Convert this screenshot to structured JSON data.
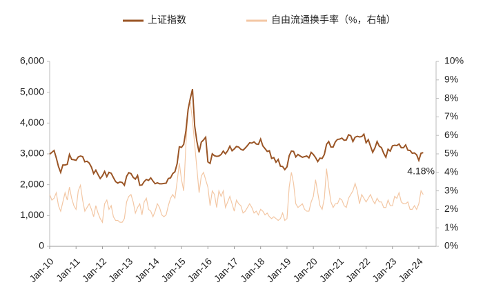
{
  "chart_data": {
    "type": "line",
    "categories": [
      "Jan-10",
      null,
      null,
      null,
      null,
      null,
      null,
      null,
      null,
      null,
      null,
      null,
      "Jan-11",
      null,
      null,
      null,
      null,
      null,
      null,
      null,
      null,
      null,
      null,
      null,
      "Jan-12",
      null,
      null,
      null,
      null,
      null,
      null,
      null,
      null,
      null,
      null,
      null,
      "Jan-13",
      null,
      null,
      null,
      null,
      null,
      null,
      null,
      null,
      null,
      null,
      null,
      "Jan-14",
      null,
      null,
      null,
      null,
      null,
      null,
      null,
      null,
      null,
      null,
      null,
      "Jan-15",
      null,
      null,
      null,
      null,
      null,
      null,
      null,
      null,
      null,
      null,
      null,
      "Jan-16",
      null,
      null,
      null,
      null,
      null,
      null,
      null,
      null,
      null,
      null,
      null,
      "Jan-17",
      null,
      null,
      null,
      null,
      null,
      null,
      null,
      null,
      null,
      null,
      null,
      "Jan-18",
      null,
      null,
      null,
      null,
      null,
      null,
      null,
      null,
      null,
      null,
      null,
      "Jan-19",
      null,
      null,
      null,
      null,
      null,
      null,
      null,
      null,
      null,
      null,
      null,
      "Jan-20",
      null,
      null,
      null,
      null,
      null,
      null,
      null,
      null,
      null,
      null,
      null,
      "Jan-21",
      null,
      null,
      null,
      null,
      null,
      null,
      null,
      null,
      null,
      null,
      null,
      "Jan-22",
      null,
      null,
      null,
      null,
      null,
      null,
      null,
      null,
      null,
      null,
      null,
      "Jan-23",
      null,
      null,
      null,
      null,
      null,
      null,
      null,
      null,
      null,
      null,
      null,
      "Jan-24",
      null,
      null
    ],
    "series": [
      {
        "name": "上证指数",
        "color": "#9a5526",
        "axis": "y",
        "values": [
          2990,
          3050,
          3110,
          2870,
          2590,
          2400,
          2640,
          2640,
          2660,
          2980,
          2820,
          2810,
          2790,
          2900,
          2930,
          2910,
          2740,
          2760,
          2700,
          2570,
          2360,
          2470,
          2330,
          2200,
          2290,
          2430,
          2260,
          2400,
          2370,
          2230,
          2100,
          2050,
          2090,
          2070,
          1980,
          2270,
          2390,
          2360,
          2240,
          2180,
          2300,
          1980,
          1990,
          2100,
          2170,
          2140,
          2220,
          2120,
          2030,
          2060,
          2030,
          2030,
          2040,
          2050,
          2200,
          2220,
          2360,
          2420,
          2680,
          3230,
          3210,
          3310,
          3750,
          4440,
          4800,
          5100,
          3900,
          3400,
          3050,
          3380,
          3450,
          3540,
          2740,
          2690,
          3000,
          2940,
          2920,
          2930,
          2980,
          3090,
          3000,
          3100,
          3250,
          3100,
          3160,
          3240,
          3220,
          3150,
          3120,
          3190,
          3270,
          3360,
          3350,
          3390,
          3320,
          3310,
          3480,
          3260,
          3170,
          3080,
          3100,
          2850,
          2880,
          2730,
          2820,
          2600,
          2590,
          2490,
          2580,
          2940,
          3090,
          3080,
          2900,
          2980,
          2930,
          2890,
          2910,
          2930,
          2870,
          3050,
          2980,
          2880,
          2750,
          2860,
          2850,
          2980,
          3310,
          3400,
          3220,
          3220,
          3390,
          3470,
          3480,
          3510,
          3440,
          3450,
          3620,
          3590,
          3400,
          3540,
          3570,
          3550,
          3560,
          3640,
          3360,
          3460,
          3250,
          3050,
          3190,
          3400,
          3250,
          3200,
          3020,
          2890,
          3150,
          3090,
          3260,
          3280,
          3270,
          3320,
          3200,
          3200,
          3290,
          3120,
          3110,
          3020,
          3030,
          2970,
          2790,
          3020,
          3040
        ]
      },
      {
        "name": "自由流通换手率（%，右轴）",
        "color": "#f3c7a4",
        "axis": "y2",
        "values": [
          2.8,
          2.5,
          2.6,
          2.9,
          2.2,
          1.9,
          2.4,
          2.9,
          2.5,
          3.2,
          2.6,
          2.2,
          2.0,
          3.0,
          3.3,
          2.5,
          1.9,
          2.1,
          2.3,
          2.0,
          1.6,
          2.2,
          1.8,
          1.5,
          1.3,
          2.3,
          2.5,
          2.0,
          2.2,
          1.6,
          1.4,
          1.4,
          1.3,
          1.3,
          1.5,
          2.4,
          2.7,
          2.8,
          2.4,
          1.8,
          2.1,
          2.3,
          1.7,
          2.4,
          2.6,
          2.0,
          1.9,
          1.6,
          1.9,
          2.3,
          2.1,
          1.7,
          1.6,
          1.7,
          2.2,
          2.6,
          2.8,
          2.6,
          3.5,
          4.5,
          3.6,
          3.0,
          5.5,
          7.5,
          7.8,
          6.8,
          5.5,
          4.2,
          2.9,
          3.8,
          4.0,
          3.6,
          3.2,
          2.2,
          3.0,
          2.8,
          2.1,
          3.0,
          2.7,
          3.0,
          2.1,
          2.4,
          2.7,
          2.3,
          1.9,
          2.5,
          2.3,
          2.2,
          1.8,
          1.9,
          2.1,
          2.3,
          2.1,
          1.8,
          1.9,
          1.7,
          2.0,
          1.9,
          1.7,
          1.8,
          1.6,
          1.5,
          1.6,
          1.5,
          1.4,
          1.5,
          1.8,
          1.4,
          1.5,
          3.2,
          4.0,
          3.4,
          2.3,
          2.1,
          2.2,
          2.3,
          2.0,
          1.9,
          1.9,
          2.4,
          2.7,
          3.6,
          2.9,
          2.2,
          2.0,
          2.6,
          4.2,
          3.2,
          2.4,
          2.1,
          2.3,
          2.3,
          2.6,
          2.5,
          2.2,
          2.1,
          2.6,
          2.8,
          3.0,
          3.4,
          3.0,
          2.3,
          2.8,
          2.6,
          2.4,
          2.6,
          2.8,
          2.5,
          2.3,
          2.6,
          2.4,
          2.4,
          2.1,
          2.1,
          2.5,
          2.2,
          2.2,
          2.7,
          2.6,
          2.9,
          2.4,
          2.3,
          2.3,
          2.4,
          2.0,
          2.0,
          2.2,
          2.0,
          2.3,
          3.0,
          2.8
        ]
      }
    ],
    "ylim": [
      0,
      6000
    ],
    "yticks": [
      0,
      {
        "value": 1000,
        "label": "1,000"
      },
      {
        "value": 2000,
        "label": "2,000"
      },
      {
        "value": 3000,
        "label": "3,000"
      },
      {
        "value": 4000,
        "label": "4,000"
      },
      {
        "value": 5000,
        "label": "5,000"
      },
      {
        "value": 6000,
        "label": "6,000"
      }
    ],
    "y2lim": [
      0,
      10
    ],
    "y2ticks": [
      {
        "value": 0,
        "label": "0%"
      },
      {
        "value": 1,
        "label": "1%"
      },
      {
        "value": 2,
        "label": "2%"
      },
      {
        "value": 3,
        "label": "3%"
      },
      {
        "value": 4,
        "label": "4%"
      },
      {
        "value": 5,
        "label": "5%"
      },
      {
        "value": 6,
        "label": "6%"
      },
      {
        "value": 7,
        "label": "7%"
      },
      {
        "value": 8,
        "label": "8%"
      },
      {
        "value": 9,
        "label": "9%"
      },
      {
        "value": 10,
        "label": "10%"
      }
    ],
    "annotations": [
      {
        "text": "4.18%"
      }
    ],
    "legend": "top"
  }
}
